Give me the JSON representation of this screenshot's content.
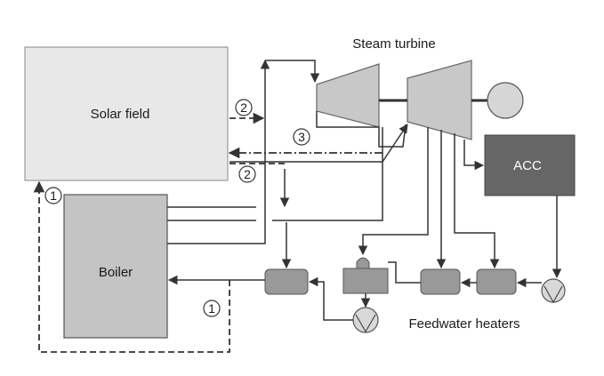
{
  "labels": {
    "solar_field": "Solar field",
    "steam_turbine": "Steam turbine",
    "acc": "ACC",
    "boiler": "Boiler",
    "feedwater_heaters": "Feedwater heaters"
  },
  "markers": {
    "loop_1_top": "1",
    "loop_1_bottom": "1",
    "loop_2_upper": "2",
    "loop_2_lower": "2",
    "loop_3": "3"
  },
  "colors": {
    "solar_field_fill": "#e8e8e8",
    "turbine_fill": "#c8c8c8",
    "acc_fill": "#666666",
    "boiler_fill": "#c4c4c4",
    "heater_fill": "#999999",
    "pump_fill": "#d8d8d8",
    "line": "#333333"
  }
}
